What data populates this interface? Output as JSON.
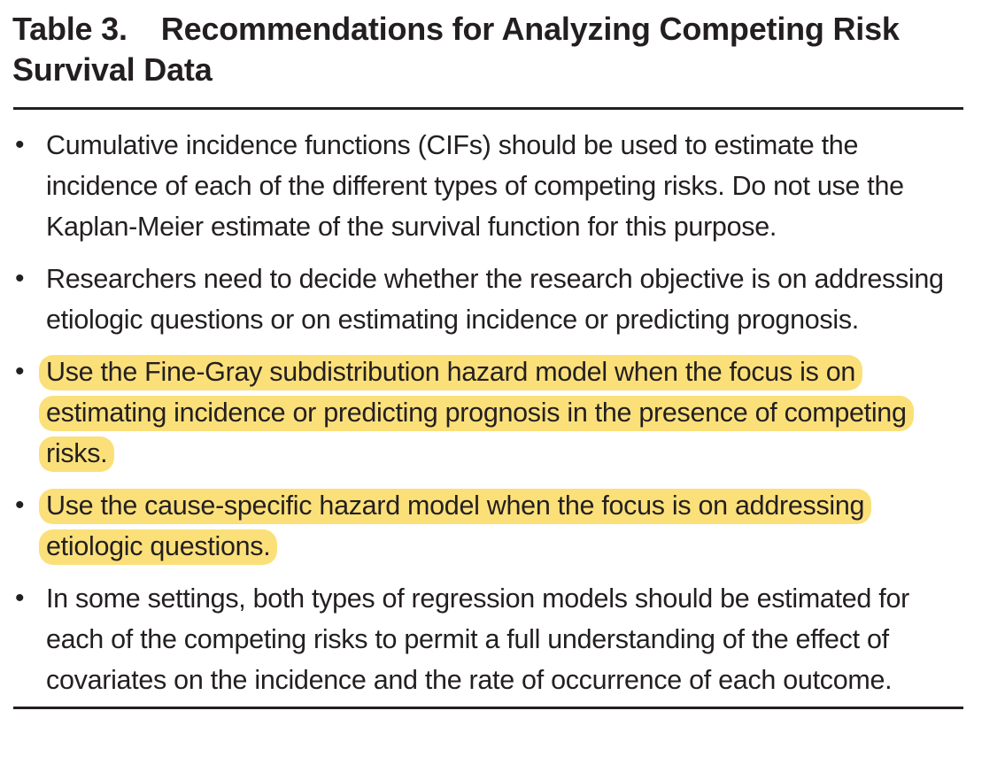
{
  "table": {
    "label": "Table 3.",
    "title": "Recommendations for Analyzing Competing Risk Survival Data"
  },
  "highlight_color": "#fbe07a",
  "bullet_symbol": "•",
  "recommendations": [
    {
      "text": "Cumulative incidence functions (CIFs) should be used to estimate the incidence of each of the different types of competing risks. Do not use the Kaplan-Meier estimate of the survival function for this purpose.",
      "highlighted": false
    },
    {
      "text": "Researchers need to decide whether the research objective is on addressing etiologic questions or on estimating incidence or predicting prognosis.",
      "highlighted": false
    },
    {
      "text": "Use the Fine-Gray subdistribution hazard model when the focus is on estimating incidence or predicting prognosis in the presence of competing risks.",
      "highlighted": true
    },
    {
      "text": "Use the cause-specific hazard model when the focus is on addressing etiologic questions.",
      "highlighted": true
    },
    {
      "text": "In some settings, both types of regression models should be estimated for each of the competing risks to permit a full understanding of the effect of covariates on the incidence and the rate of occurrence of each outcome.",
      "highlighted": false
    }
  ]
}
